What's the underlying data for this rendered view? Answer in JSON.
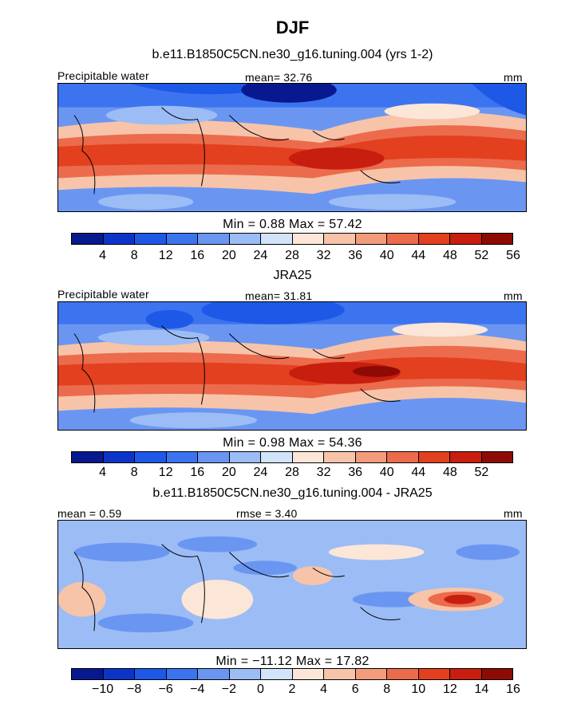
{
  "season": "DJF",
  "panels": [
    {
      "title": "b.e11.B1850C5CN.ne30_g16.tuning.004 (yrs 1-2)",
      "left_label": "Precipitable water",
      "center_label": "mean=  32.76",
      "right_label": "mm",
      "stats": "Min =    0.88  Max =   57.42",
      "colorbar": {
        "labels": [
          "4",
          "8",
          "12",
          "16",
          "20",
          "24",
          "28",
          "32",
          "36",
          "40",
          "44",
          "48",
          "52",
          "56"
        ],
        "colors": [
          "#08198f",
          "#0c35c8",
          "#1e58e6",
          "#3c74f0",
          "#6a96f2",
          "#9cbcf5",
          "#d2e4fa",
          "#fbe6d8",
          "#f7c4a9",
          "#f29c7c",
          "#ec6b4c",
          "#e2401f",
          "#c71e10",
          "#8e0b05"
        ]
      }
    },
    {
      "title": "JRA25",
      "left_label": "Precipitable water",
      "center_label": "mean=  31.81",
      "right_label": "mm",
      "stats": "Min =    0.98  Max =   54.36",
      "colorbar": {
        "labels": [
          "4",
          "8",
          "12",
          "16",
          "20",
          "24",
          "28",
          "32",
          "36",
          "40",
          "44",
          "48",
          "52"
        ],
        "colors": [
          "#08198f",
          "#0c35c8",
          "#1e58e6",
          "#3c74f0",
          "#6a96f2",
          "#9cbcf5",
          "#d2e4fa",
          "#fbe6d8",
          "#f7c4a9",
          "#f29c7c",
          "#ec6b4c",
          "#e2401f",
          "#c71e10",
          "#8e0b05"
        ]
      }
    },
    {
      "title": "b.e11.B1850C5CN.ne30_g16.tuning.004 - JRA25",
      "left_label": "mean =   0.59",
      "center_label": "rmse =    3.40",
      "right_label": "mm",
      "stats": "Min = −11.12  Max =   17.82",
      "colorbar": {
        "labels": [
          "−10",
          "−8",
          "−6",
          "−4",
          "−2",
          "0",
          "2",
          "4",
          "6",
          "8",
          "10",
          "12",
          "14",
          "16"
        ],
        "colors": [
          "#08198f",
          "#0c35c8",
          "#1e58e6",
          "#3c74f0",
          "#6a96f2",
          "#9cbcf5",
          "#d2e4fa",
          "#fbe6d8",
          "#f7c4a9",
          "#f29c7c",
          "#ec6b4c",
          "#e2401f",
          "#c71e10",
          "#8e0b05"
        ]
      }
    }
  ]
}
